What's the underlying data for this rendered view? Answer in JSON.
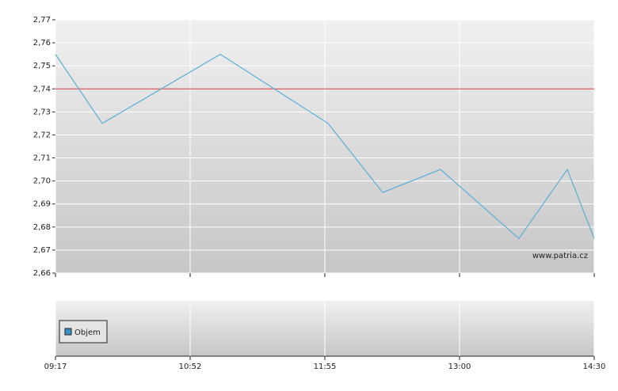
{
  "chart_data": {
    "type": "line",
    "x": [
      0,
      0.347,
      1.224,
      2.024,
      2.429,
      2.859,
      3.441,
      3.8,
      4
    ],
    "series": [
      {
        "color": "#5aaed6",
        "values": [
          2.755,
          2.725,
          2.755,
          2.725,
          2.695,
          2.705,
          2.675,
          2.705,
          2.675
        ]
      }
    ],
    "xlim": [
      0,
      4
    ],
    "xticks": [
      {
        "value": 0,
        "label": "09:17"
      },
      {
        "value": 1,
        "label": "10:52"
      },
      {
        "value": 2,
        "label": "11:55"
      },
      {
        "value": 3,
        "label": "13:00"
      },
      {
        "value": 4,
        "label": "14:30"
      }
    ],
    "ylim": [
      2.66,
      2.77
    ],
    "yticks": [
      {
        "value": 2.66,
        "label": "2,66"
      },
      {
        "value": 2.67,
        "label": "2,67"
      },
      {
        "value": 2.68,
        "label": "2,68"
      },
      {
        "value": 2.69,
        "label": "2,69"
      },
      {
        "value": 2.7,
        "label": "2,70"
      },
      {
        "value": 2.71,
        "label": "2,71"
      },
      {
        "value": 2.72,
        "label": "2,72"
      },
      {
        "value": 2.73,
        "label": "2,73"
      },
      {
        "value": 2.74,
        "label": "2,74"
      },
      {
        "value": 2.75,
        "label": "2,75"
      },
      {
        "value": 2.76,
        "label": "2,76"
      },
      {
        "value": 2.77,
        "label": "2,77"
      }
    ],
    "reference_line": {
      "value": 2.74,
      "color": "#e03030"
    },
    "watermark": "www.patria.cz",
    "grid": true,
    "volume_legend": {
      "name": "Objem",
      "color": "#3a8fc8"
    }
  }
}
